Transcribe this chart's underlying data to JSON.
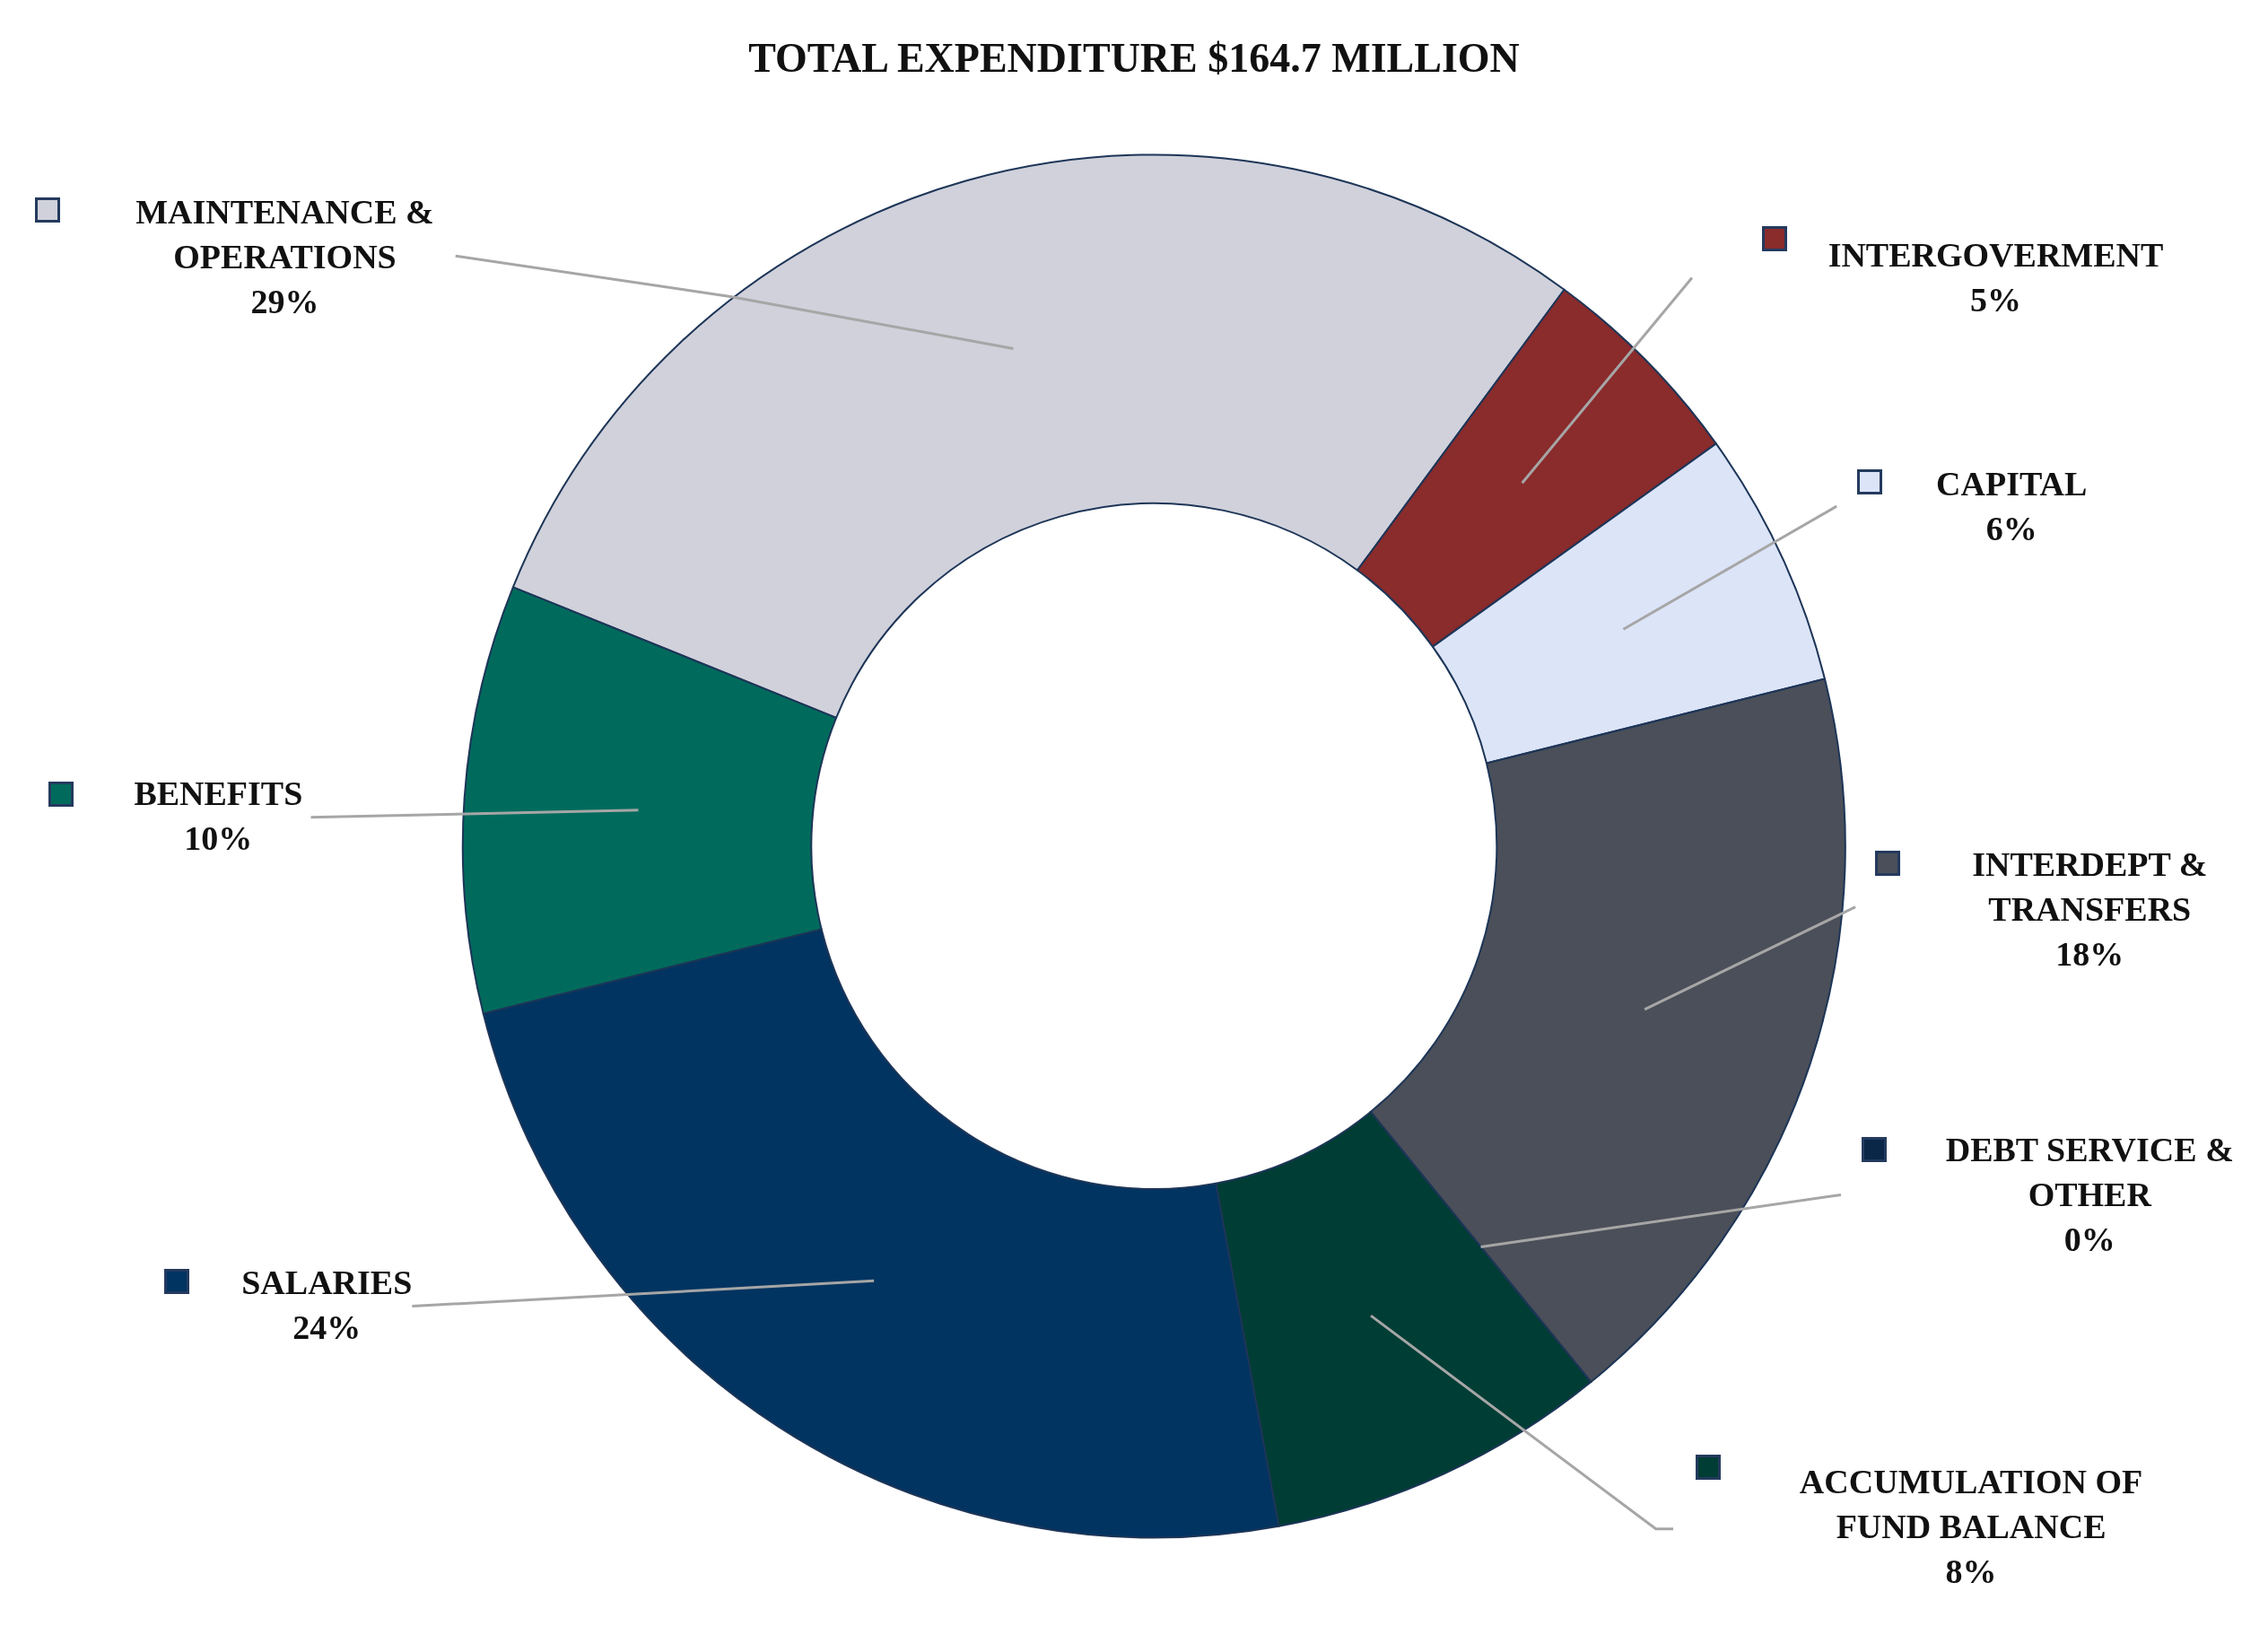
{
  "chart_data": {
    "type": "donut",
    "title": "TOTAL EXPENDITURE $164.7 MILLION",
    "categories": [
      "MAINTENANCE & OPERATIONS",
      "INTERGOVERMENT",
      "CAPITAL",
      "INTERDEPT & TRANSFERS",
      "DEBT SERVICE & OTHER",
      "ACCUMULATION OF FUND BALANCE",
      "SALARIES",
      "BENEFITS"
    ],
    "values": [
      29,
      5,
      6,
      18,
      0,
      8,
      24,
      10
    ],
    "value_labels": [
      "29%",
      "5%",
      "6%",
      "18%",
      "0%",
      "8%",
      "24%",
      "10%"
    ],
    "colors": [
      "#d0d1db",
      "#8a2b2c",
      "#dce4f8",
      "#4a4f59",
      "#0b2747",
      "#003d35",
      "#023461",
      "#006b5c"
    ],
    "legend": "right"
  }
}
